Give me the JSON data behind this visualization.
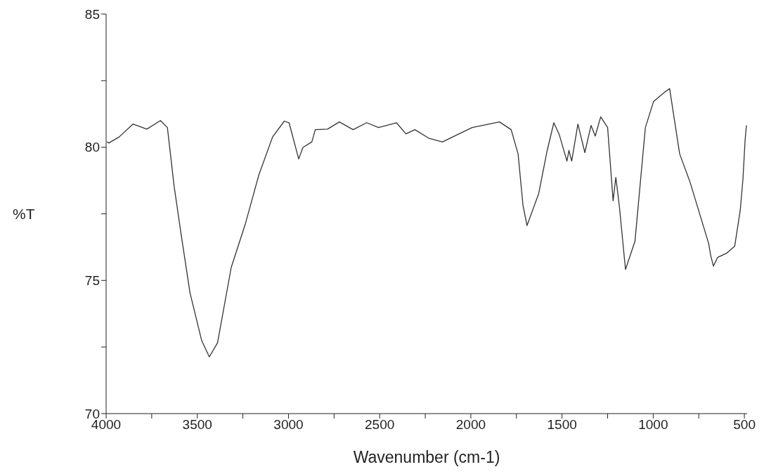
{
  "chart_data": {
    "type": "line",
    "xlabel": "Wavenumber (cm-1)",
    "ylabel": "%T",
    "xlim": [
      4000,
      485
    ],
    "ylim": [
      70,
      85
    ],
    "xticks": [
      4000,
      {
        "value": 3750,
        "label": null
      },
      3500,
      {
        "value": 3250,
        "label": null
      },
      3000,
      {
        "value": 2750,
        "label": null
      },
      2500,
      {
        "value": 2250,
        "label": null
      },
      2000,
      {
        "value": 1750,
        "label": null
      },
      1500,
      {
        "value": 1250,
        "label": null
      },
      1000,
      {
        "value": 750,
        "label": null
      },
      500
    ],
    "yticks": [
      70,
      {
        "value": 72.5,
        "label": null
      },
      75,
      {
        "value": 77.5,
        "label": null
      },
      80,
      {
        "value": 82.5,
        "label": null
      },
      85
    ],
    "grid": false,
    "legend": false,
    "marker": "none",
    "line_style": "solid",
    "series": [
      {
        "color": "#333333",
        "x": [
          3995,
          3985,
          3928,
          3853,
          3777,
          3702,
          3664,
          3627,
          3589,
          3540,
          3476,
          3434,
          3389,
          3314,
          3238,
          3163,
          3087,
          3023,
          2997,
          2944,
          2921,
          2872,
          2853,
          2786,
          2721,
          2646,
          2571,
          2506,
          2408,
          2356,
          2307,
          2231,
          2156,
          1993,
          1843,
          1779,
          1741,
          1714,
          1692,
          1628,
          1582,
          1545,
          1515,
          1473,
          1462,
          1447,
          1413,
          1375,
          1341,
          1318,
          1288,
          1250,
          1220,
          1205,
          1186,
          1152,
          1100,
          1043,
          998,
          937,
          910,
          885,
          855,
          798,
          696,
          685,
          670,
          647,
          598,
          553,
          523,
          508,
          496,
          489
        ],
        "values": [
          80.2,
          80.16,
          80.39,
          80.87,
          80.68,
          81.0,
          80.74,
          78.53,
          76.74,
          74.53,
          72.74,
          72.13,
          72.66,
          75.49,
          77.09,
          78.95,
          80.39,
          80.98,
          80.92,
          79.56,
          79.99,
          80.2,
          80.66,
          80.68,
          80.95,
          80.66,
          80.92,
          80.74,
          80.92,
          80.5,
          80.66,
          80.34,
          80.2,
          80.74,
          80.95,
          80.66,
          79.75,
          77.81,
          77.06,
          78.26,
          79.86,
          80.92,
          80.47,
          79.48,
          79.88,
          79.48,
          80.87,
          79.8,
          80.82,
          80.42,
          81.14,
          80.74,
          77.99,
          78.87,
          77.81,
          75.41,
          76.47,
          80.74,
          81.72,
          82.07,
          82.2,
          81.08,
          79.75,
          78.69,
          76.39,
          75.94,
          75.54,
          75.86,
          76.02,
          76.29,
          77.62,
          78.79,
          80.28,
          80.82
        ]
      }
    ]
  }
}
